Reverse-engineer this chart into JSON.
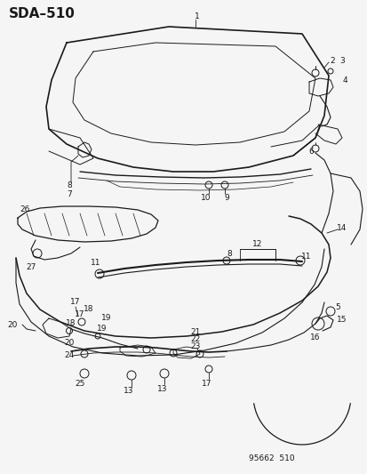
{
  "title": "SDA–510",
  "footer": "95662  510",
  "bg_color": "#f5f5f5",
  "line_color": "#1a1a1a",
  "title_fontsize": 11,
  "footer_fontsize": 6.5,
  "label_fontsize": 6.5,
  "fig_width": 4.14,
  "fig_height": 5.33,
  "dpi": 100
}
